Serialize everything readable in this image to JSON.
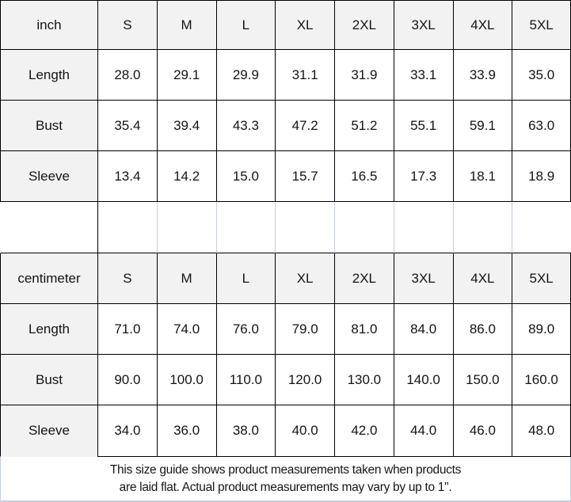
{
  "chart_data": [
    {
      "type": "table",
      "title": "inch size guide",
      "unit": "inch",
      "columns": [
        "inch",
        "S",
        "M",
        "L",
        "XL",
        "2XL",
        "3XL",
        "4XL",
        "5XL"
      ],
      "rows": [
        [
          "Length",
          "28.0",
          "29.1",
          "29.9",
          "31.1",
          "31.9",
          "33.1",
          "33.9",
          "35.0"
        ],
        [
          "Bust",
          "35.4",
          "39.4",
          "43.3",
          "47.2",
          "51.2",
          "55.1",
          "59.1",
          "63.0"
        ],
        [
          "Sleeve",
          "13.4",
          "14.2",
          "15.0",
          "15.7",
          "16.5",
          "17.3",
          "18.1",
          "18.9"
        ]
      ]
    },
    {
      "type": "table",
      "title": "centimeter size guide",
      "unit": "centimeter",
      "columns": [
        "centimeter",
        "S",
        "M",
        "L",
        "XL",
        "2XL",
        "3XL",
        "4XL",
        "5XL"
      ],
      "rows": [
        [
          "Length",
          "71.0",
          "74.0",
          "76.0",
          "79.0",
          "81.0",
          "84.0",
          "86.0",
          "89.0"
        ],
        [
          "Bust",
          "90.0",
          "100.0",
          "110.0",
          "120.0",
          "130.0",
          "140.0",
          "150.0",
          "160.0"
        ],
        [
          "Sleeve",
          "34.0",
          "36.0",
          "38.0",
          "40.0",
          "42.0",
          "44.0",
          "46.0",
          "48.0"
        ]
      ]
    }
  ],
  "footer": {
    "line1": "This size guide shows product measurements taken when products",
    "line2": "are laid flat. Actual product measurements may vary by up to 1\"."
  },
  "colors": {
    "header_bg": "#f2f2f2",
    "border_dark": "#000000",
    "border_light": "#c6cede",
    "text": "#141414"
  }
}
